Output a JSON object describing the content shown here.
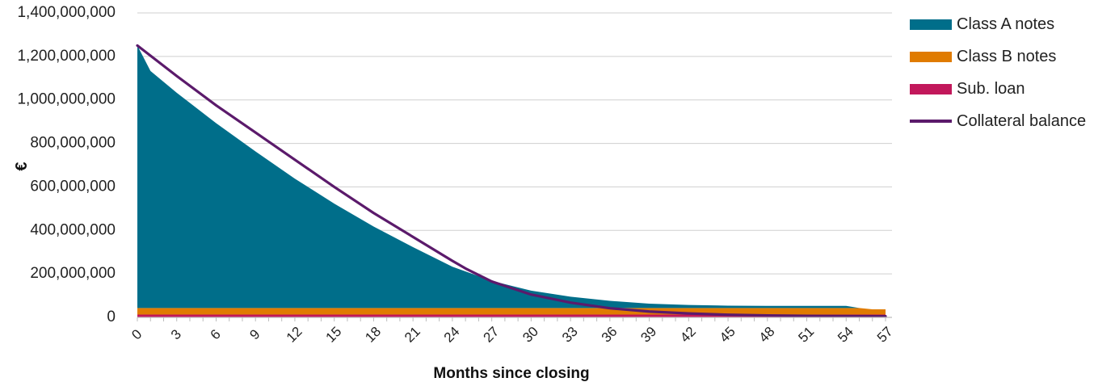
{
  "chart_data": {
    "type": "area",
    "xlabel": "Months since closing",
    "ylabel": "€",
    "xlim": [
      0,
      57
    ],
    "ylim": [
      0,
      1400000000
    ],
    "y_ticks": [
      0,
      200000000,
      400000000,
      600000000,
      800000000,
      1000000000,
      1200000000,
      1400000000
    ],
    "x_ticks": [
      0,
      3,
      6,
      9,
      12,
      15,
      18,
      21,
      24,
      27,
      30,
      33,
      36,
      39,
      42,
      45,
      48,
      51,
      54,
      57
    ],
    "grid": true,
    "legend_position": "right",
    "series": [
      {
        "name": "Sub. loan",
        "kind": "stacked-area",
        "color": "#c2185b",
        "x": [
          0,
          54,
          55,
          56,
          57
        ],
        "values": [
          13000000,
          13000000,
          13000000,
          13000000,
          13000000
        ]
      },
      {
        "name": "Class B notes",
        "kind": "stacked-area",
        "color": "#e07b00",
        "x": [
          0,
          54,
          55,
          56,
          57
        ],
        "values": [
          30000000,
          30000000,
          30000000,
          24000000,
          24000000
        ]
      },
      {
        "name": "Class A notes",
        "kind": "stacked-area",
        "color": "#006e8a",
        "x": [
          0,
          1,
          2,
          3,
          6,
          9,
          12,
          15,
          18,
          21,
          24,
          27,
          30,
          33,
          36,
          39,
          42,
          45,
          48,
          51,
          54,
          55,
          56,
          57
        ],
        "values": [
          1207000000,
          1090000000,
          1040000000,
          990000000,
          850000000,
          720000000,
          595000000,
          480000000,
          375000000,
          280000000,
          190000000,
          125000000,
          80000000,
          52000000,
          33000000,
          20000000,
          14000000,
          11000000,
          10000000,
          10000000,
          10000000,
          0,
          0,
          0
        ]
      },
      {
        "name": "Collateral balance",
        "kind": "line",
        "color": "#5b1a6b",
        "x": [
          0,
          3,
          6,
          9,
          12,
          15,
          18,
          21,
          24,
          25,
          27,
          30,
          33,
          36,
          39,
          42,
          45,
          48,
          51,
          54,
          57
        ],
        "values": [
          1250000000,
          1110000000,
          975000000,
          850000000,
          725000000,
          600000000,
          480000000,
          370000000,
          260000000,
          225000000,
          165000000,
          105000000,
          68000000,
          42000000,
          27000000,
          18000000,
          12000000,
          9000000,
          7000000,
          6000000,
          5000000
        ]
      }
    ]
  },
  "legend": [
    {
      "label": "Class A notes",
      "color": "#006e8a",
      "kind": "area"
    },
    {
      "label": "Class B notes",
      "color": "#e07b00",
      "kind": "area"
    },
    {
      "label": "Sub. loan",
      "color": "#c2185b",
      "kind": "area"
    },
    {
      "label": "Collateral balance",
      "color": "#5b1a6b",
      "kind": "line"
    }
  ]
}
